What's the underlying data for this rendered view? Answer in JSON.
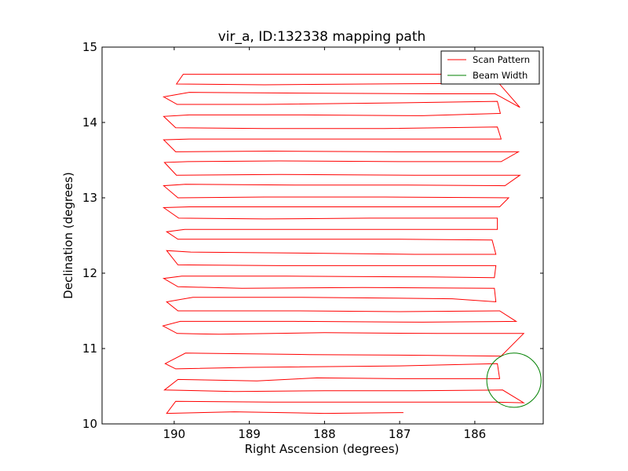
{
  "chart_data": {
    "type": "line",
    "title": "vir_a, ID:132338 mapping path",
    "xlabel": "Right Ascension (degrees)",
    "ylabel": "Declination (degrees)",
    "xlim": [
      190.96,
      185.09
    ],
    "ylim": [
      10,
      15
    ],
    "x_inverted": true,
    "xticks": [
      190,
      189,
      188,
      187,
      186
    ],
    "xtick_labels": [
      "190",
      "189",
      "188",
      "187",
      "186"
    ],
    "yticks": [
      10,
      11,
      12,
      13,
      14,
      15
    ],
    "ytick_labels": [
      "10",
      "11",
      "12",
      "13",
      "14",
      "15"
    ],
    "grid": false,
    "legend_position": "top-right",
    "series": [
      {
        "name": "Scan Pattern",
        "color": "#ff0000",
        "description_points": "serpentine raster path: constant-declination legs alternating direction, stepping ~0.145 deg in declination per leg",
        "path": [
          [
            186.95,
            10.15
          ],
          [
            188.0,
            10.14
          ],
          [
            189.2,
            10.16
          ],
          [
            190.1,
            10.14
          ],
          [
            189.98,
            10.3
          ],
          [
            188.7,
            10.29
          ],
          [
            187.2,
            10.29
          ],
          [
            185.75,
            10.29
          ],
          [
            185.35,
            10.28
          ],
          [
            185.63,
            10.45
          ],
          [
            186.8,
            10.44
          ],
          [
            188.0,
            10.44
          ],
          [
            189.2,
            10.43
          ],
          [
            190.13,
            10.45
          ],
          [
            189.95,
            10.59
          ],
          [
            188.9,
            10.57
          ],
          [
            188.1,
            10.61
          ],
          [
            187.0,
            10.6
          ],
          [
            185.67,
            10.6
          ],
          [
            185.7,
            10.8
          ],
          [
            187.0,
            10.77
          ],
          [
            189.0,
            10.75
          ],
          [
            189.98,
            10.73
          ],
          [
            190.12,
            10.8
          ],
          [
            189.85,
            10.94
          ],
          [
            188.2,
            10.92
          ],
          [
            186.7,
            10.91
          ],
          [
            185.65,
            10.9
          ],
          [
            185.35,
            11.2
          ],
          [
            186.5,
            11.2
          ],
          [
            188.0,
            11.21
          ],
          [
            189.4,
            11.19
          ],
          [
            189.96,
            11.2
          ],
          [
            190.15,
            11.3
          ],
          [
            189.92,
            11.36
          ],
          [
            188.4,
            11.36
          ],
          [
            186.7,
            11.35
          ],
          [
            185.45,
            11.36
          ],
          [
            185.67,
            11.5
          ],
          [
            187.0,
            11.49
          ],
          [
            188.4,
            11.5
          ],
          [
            189.95,
            11.5
          ],
          [
            190.1,
            11.62
          ],
          [
            189.75,
            11.68
          ],
          [
            188.3,
            11.68
          ],
          [
            186.3,
            11.66
          ],
          [
            185.72,
            11.62
          ],
          [
            185.74,
            11.8
          ],
          [
            187.5,
            11.81
          ],
          [
            189.1,
            11.8
          ],
          [
            189.95,
            11.82
          ],
          [
            190.14,
            11.93
          ],
          [
            189.9,
            11.96
          ],
          [
            188.5,
            11.96
          ],
          [
            186.6,
            11.95
          ],
          [
            185.74,
            11.94
          ],
          [
            185.72,
            12.1
          ],
          [
            187.2,
            12.1
          ],
          [
            188.6,
            12.1
          ],
          [
            189.95,
            12.11
          ],
          [
            190.1,
            12.3
          ],
          [
            189.78,
            12.28
          ],
          [
            188.6,
            12.27
          ],
          [
            186.8,
            12.25
          ],
          [
            185.72,
            12.25
          ],
          [
            185.77,
            12.44
          ],
          [
            187.0,
            12.45
          ],
          [
            188.2,
            12.45
          ],
          [
            189.95,
            12.45
          ],
          [
            190.1,
            12.55
          ],
          [
            189.86,
            12.58
          ],
          [
            188.2,
            12.58
          ],
          [
            186.8,
            12.58
          ],
          [
            185.7,
            12.58
          ],
          [
            185.7,
            12.73
          ],
          [
            187.4,
            12.73
          ],
          [
            188.8,
            12.72
          ],
          [
            189.94,
            12.73
          ],
          [
            190.14,
            12.87
          ],
          [
            189.8,
            12.88
          ],
          [
            188.4,
            12.88
          ],
          [
            186.9,
            12.88
          ],
          [
            185.67,
            12.88
          ],
          [
            185.55,
            13.0
          ],
          [
            187.2,
            13.01
          ],
          [
            188.8,
            13.01
          ],
          [
            189.95,
            13.0
          ],
          [
            190.14,
            13.16
          ],
          [
            189.85,
            13.18
          ],
          [
            188.4,
            13.17
          ],
          [
            186.9,
            13.17
          ],
          [
            185.6,
            13.16
          ],
          [
            185.4,
            13.3
          ],
          [
            186.8,
            13.3
          ],
          [
            188.6,
            13.31
          ],
          [
            189.97,
            13.3
          ],
          [
            190.13,
            13.47
          ],
          [
            189.82,
            13.48
          ],
          [
            188.6,
            13.49
          ],
          [
            187.0,
            13.48
          ],
          [
            185.65,
            13.48
          ],
          [
            185.42,
            13.61
          ],
          [
            187.0,
            13.61
          ],
          [
            188.7,
            13.62
          ],
          [
            189.98,
            13.61
          ],
          [
            190.14,
            13.77
          ],
          [
            189.8,
            13.78
          ],
          [
            188.4,
            13.78
          ],
          [
            186.9,
            13.78
          ],
          [
            185.65,
            13.78
          ],
          [
            185.7,
            13.94
          ],
          [
            187.2,
            13.92
          ],
          [
            188.8,
            13.92
          ],
          [
            189.98,
            13.93
          ],
          [
            190.14,
            14.08
          ],
          [
            189.8,
            14.1
          ],
          [
            188.3,
            14.1
          ],
          [
            186.7,
            14.09
          ],
          [
            185.66,
            14.12
          ],
          [
            185.7,
            14.28
          ],
          [
            187.0,
            14.26
          ],
          [
            188.8,
            14.24
          ],
          [
            189.96,
            14.24
          ],
          [
            190.14,
            14.34
          ],
          [
            189.8,
            14.4
          ],
          [
            188.3,
            14.39
          ],
          [
            186.6,
            14.38
          ],
          [
            185.73,
            14.38
          ],
          [
            185.4,
            14.2
          ],
          [
            185.68,
            14.52
          ],
          [
            187.4,
            14.51
          ],
          [
            188.8,
            14.5
          ],
          [
            189.97,
            14.51
          ],
          [
            189.88,
            14.64
          ],
          [
            188.2,
            14.64
          ],
          [
            186.5,
            14.64
          ],
          [
            185.7,
            14.65
          ]
        ]
      },
      {
        "name": "Beam Width",
        "color": "#008000",
        "shape": "circle",
        "center": [
          185.48,
          10.58
        ],
        "radius_y": 0.36
      }
    ]
  }
}
